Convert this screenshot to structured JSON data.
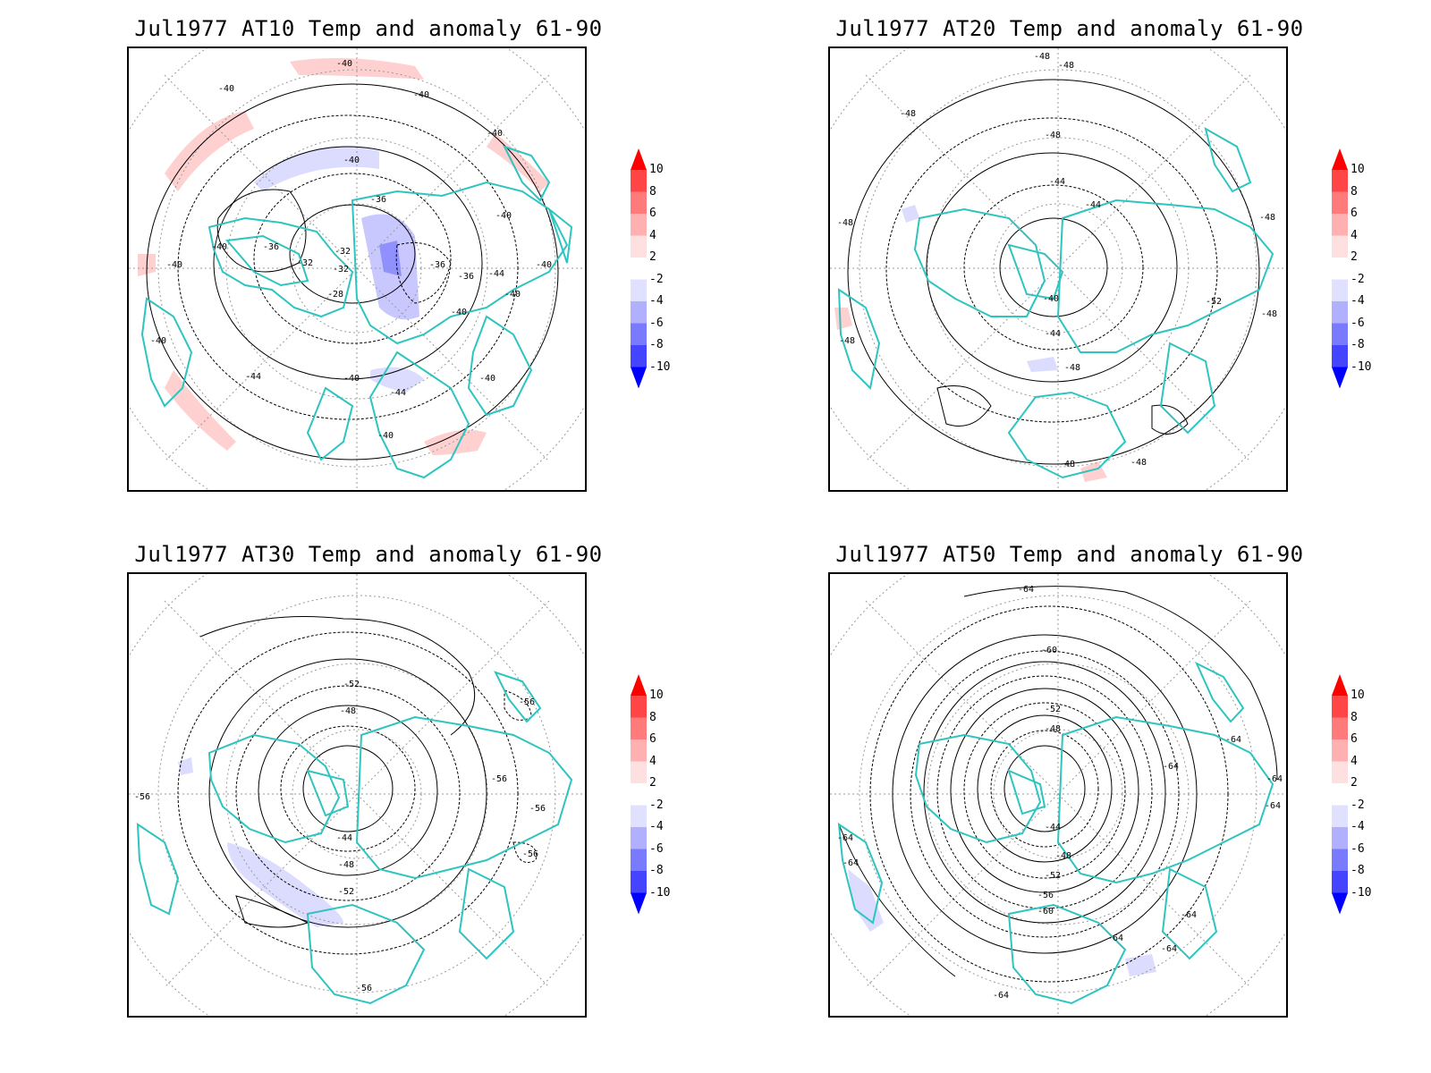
{
  "panels": [
    {
      "title": "Jul1977 AT10 Temp and anomaly 61-90",
      "contour_labels": [
        "-40",
        "-40",
        "-40",
        "-40",
        "-40",
        "-40",
        "-36",
        "-36",
        "-32",
        "-32",
        "-32",
        "-28",
        "-40",
        "-36",
        "-36",
        "-44",
        "-40",
        "-40",
        "-40",
        "-40",
        "-44",
        "-40",
        "-44",
        "-40",
        "-40",
        "-40"
      ],
      "anomaly": "mixed"
    },
    {
      "title": "Jul1977 AT20 Temp and anomaly 61-90",
      "contour_labels": [
        "-48",
        "-48",
        "-48",
        "-48",
        "-44",
        "-44",
        "-48",
        "-48",
        "-40",
        "-44",
        "-48",
        "-52",
        "-48",
        "-48",
        "-48",
        "-48"
      ],
      "anomaly": "weak"
    },
    {
      "title": "Jul1977 AT30 Temp and anomaly 61-90",
      "contour_labels": [
        "-52",
        "-48",
        "-56",
        "-56",
        "-56",
        "-56",
        "-56",
        "-44",
        "-48",
        "-52",
        "-56"
      ],
      "anomaly": "negative"
    },
    {
      "title": "Jul1977 AT50 Temp and anomaly 61-90",
      "contour_labels": [
        "-64",
        "-60",
        "-52",
        "-48",
        "-64",
        "-64",
        "-64",
        "-64",
        "-44",
        "-48",
        "-52",
        "-56",
        "-60",
        "-64",
        "-64",
        "-64",
        "-64",
        "-64",
        "-64"
      ],
      "anomaly": "weak"
    }
  ],
  "colorbar": {
    "labels": [
      "10",
      "8",
      "6",
      "4",
      "2",
      "-2",
      "-4",
      "-6",
      "-8",
      "-10"
    ],
    "colors": [
      "#ff0000",
      "#ff4545",
      "#ff7a7a",
      "#ffb0b0",
      "#ffe0e0",
      "#ffffff",
      "#e0e0ff",
      "#b0b0ff",
      "#7a7aff",
      "#4545ff",
      "#0000ff"
    ]
  },
  "coastline_color": "#2ec4c0"
}
